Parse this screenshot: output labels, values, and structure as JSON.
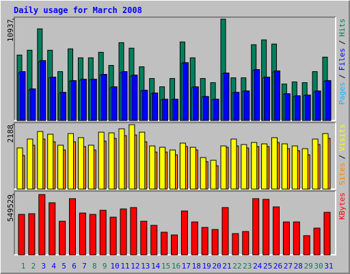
{
  "chart_data": [
    {
      "type": "bar",
      "title": "Daily usage for March 2008",
      "separator": "/",
      "ylim": [
        0,
        10937
      ],
      "yticks": [
        10937
      ],
      "series": [
        {
          "name": "Hits",
          "color": "#00805c",
          "values": [
            7068,
            7589,
            9895,
            7589,
            5282,
            7738,
            6770,
            6770,
            7366,
            5952,
            8407,
            7812,
            5803,
            4538,
            3646,
            4538,
            8482,
            6770,
            4538,
            4092,
            10937,
            4613,
            4613,
            8184,
            8705,
            8258,
            3943,
            4166,
            4092,
            5282,
            6845
          ]
        },
        {
          "name": "Pages",
          "color": "#00c0ff",
          "values": [
            5150,
            3300,
            6350,
            4600,
            2980,
            4250,
            4350,
            4400,
            4900,
            3550,
            5150,
            4800,
            3200,
            2900,
            2250,
            2250,
            6150,
            3550,
            2550,
            2250,
            5050,
            2980,
            3150,
            5400,
            4600,
            5250,
            2850,
            2600,
            2700,
            3100,
            4250
          ]
        },
        {
          "name": "Files",
          "color": "#0000ff",
          "values": [
            5282,
            3422,
            6473,
            4687,
            3050,
            4315,
            4464,
            4464,
            4985,
            3646,
            5282,
            4910,
            3274,
            2976,
            2306,
            2306,
            6250,
            3646,
            2604,
            2306,
            5134,
            3050,
            3199,
            5506,
            4687,
            5357,
            2902,
            2678,
            2753,
            3199,
            4315
          ]
        }
      ]
    },
    {
      "type": "bar",
      "ylim": [
        0,
        2188
      ],
      "yticks": [
        2188
      ],
      "series": [
        {
          "name": "Sites",
          "color": "#ff8000",
          "values": [
            1141,
            1490,
            1699,
            1606,
            1327,
            1606,
            1443,
            1327,
            1629,
            1722,
            1816,
            1839,
            1606,
            1257,
            1257,
            1164,
            1443,
            1327,
            931,
            791,
            1420,
            1466,
            1397,
            1443,
            1443,
            1583,
            1373,
            1304,
            1164,
            1513,
            1722
          ]
        },
        {
          "name": "Visits",
          "color": "#ffff00",
          "values": [
            1397,
            1699,
            1955,
            1862,
            1490,
            1885,
            1746,
            1490,
            1932,
            1909,
            2048,
            2188,
            1932,
            1466,
            1420,
            1327,
            1560,
            1420,
            1071,
            978,
            1466,
            1699,
            1513,
            1583,
            1536,
            1746,
            1536,
            1466,
            1373,
            1699,
            1885
          ]
        }
      ]
    },
    {
      "type": "bar",
      "ylim": [
        0,
        549529
      ],
      "yticks": [
        549529
      ],
      "categories": [
        "1",
        "2",
        "3",
        "4",
        "5",
        "6",
        "7",
        "8",
        "9",
        "10",
        "11",
        "12",
        "13",
        "14",
        "15",
        "16",
        "17",
        "18",
        "19",
        "20",
        "21",
        "22",
        "23",
        "24",
        "25",
        "26",
        "27",
        "28",
        "29",
        "30",
        "31"
      ],
      "category_colors": [
        "#00805c",
        "#00805c",
        "#0000ff",
        "#0000ff",
        "#0000ff",
        "#0000ff",
        "#0000ff",
        "#00805c",
        "#00805c",
        "#0000ff",
        "#0000ff",
        "#0000ff",
        "#0000ff",
        "#0000ff",
        "#00805c",
        "#00805c",
        "#0000ff",
        "#0000ff",
        "#0000ff",
        "#0000ff",
        "#0000ff",
        "#00805c",
        "#00805c",
        "#0000ff",
        "#0000ff",
        "#0000ff",
        "#0000ff",
        "#0000ff",
        "#00805c",
        "#00805c",
        "#0000ff"
      ],
      "series": [
        {
          "name": "KBytes",
          "color": "#ff0000",
          "values": [
            368455,
            374700,
            549529,
            474620,
            306005,
            512090,
            380945,
            368455,
            405925,
            343475,
            418415,
            430905,
            306005,
            268535,
            206085,
            181105,
            399680,
            299760,
            249800,
            231065,
            430905,
            193595,
            212330,
            512090,
            505845,
            437150,
            299760,
            299760,
            174860,
            243555,
            387190
          ]
        }
      ]
    }
  ]
}
